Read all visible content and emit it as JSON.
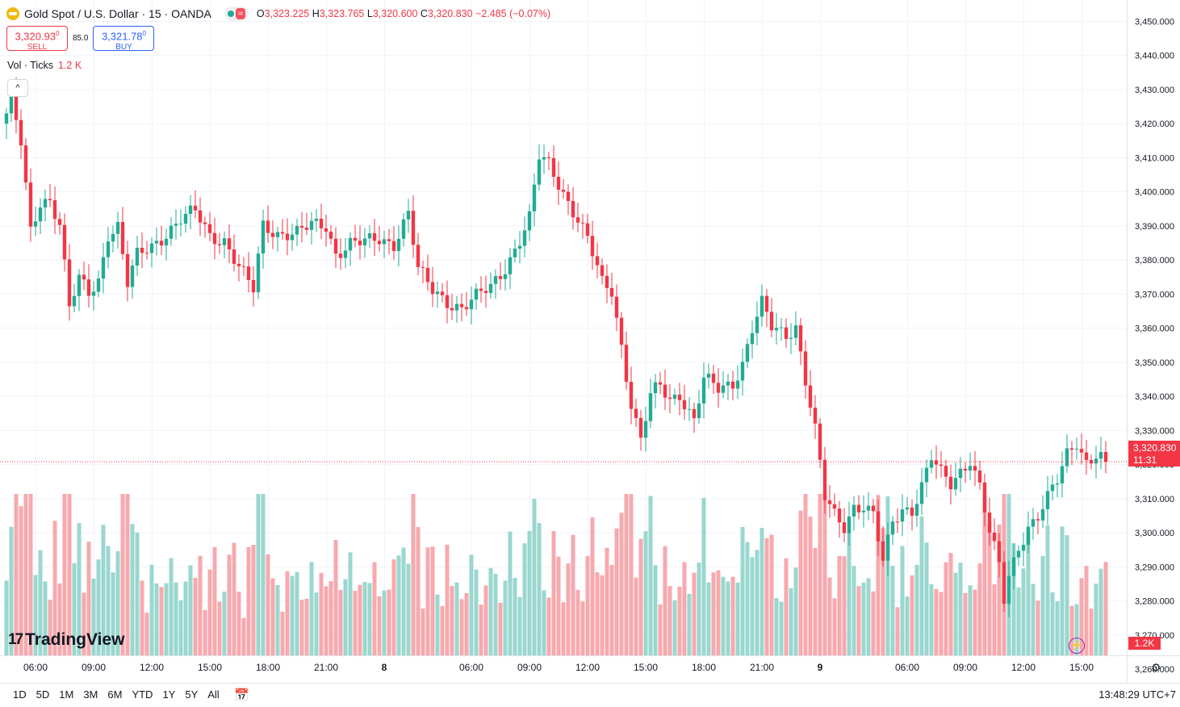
{
  "header": {
    "title": "Gold Spot / U.S. Dollar · 15 · OANDA",
    "wave_symbol": "≈",
    "ohlc": {
      "o_label": "O",
      "o": "3,323.225",
      "h_label": "H",
      "h": "3,323.765",
      "l_label": "L",
      "l": "3,320.600",
      "c_label": "C",
      "c": "3,320.830",
      "change": "−2.485 (−0.07%)"
    }
  },
  "trade": {
    "sell_price": "3,320.93",
    "sell_sup": "0",
    "sell_label": "SELL",
    "spread": "85.0",
    "buy_price": "3,321.78",
    "buy_sup": "0",
    "buy_label": "BUY"
  },
  "volume_legend": {
    "label": "Vol · Ticks",
    "value": "1.2 K"
  },
  "collapse_icon": "^",
  "branding": {
    "logo_mark": "17",
    "name": "TradingView"
  },
  "price_marker": {
    "price": "3,320.830",
    "countdown": "11:31"
  },
  "volume_marker": "1.2K",
  "bottom_bar": {
    "ranges": [
      "1D",
      "5D",
      "1M",
      "3M",
      "6M",
      "YTD",
      "1Y",
      "5Y",
      "All"
    ],
    "clock": "13:48:29 UTC+7"
  },
  "colors": {
    "up": "#22ab94",
    "down": "#f23645",
    "up_volume": "#9ad7cf",
    "down_volume": "#f7a9ae",
    "grid": "#f0f3fa"
  },
  "chart_data": {
    "type": "candlestick",
    "symbol": "Gold Spot / U.S. Dollar",
    "interval_minutes": 15,
    "y_range": [
      3265,
      3452
    ],
    "y_ticks": [
      "3,450.000",
      "3,440.000",
      "3,430.000",
      "3,420.000",
      "3,410.000",
      "3,400.000",
      "3,390.000",
      "3,380.000",
      "3,370.000",
      "3,360.000",
      "3,350.000",
      "3,340.000",
      "3,330.000",
      "3,320.000",
      "3,310.000",
      "3,300.000",
      "3,290.000",
      "3,280.000",
      "3,270.000",
      "3,260.000"
    ],
    "y_tick_values": [
      3450,
      3440,
      3430,
      3420,
      3410,
      3400,
      3390,
      3380,
      3370,
      3360,
      3350,
      3340,
      3330,
      3320,
      3310,
      3300,
      3290,
      3280,
      3270,
      3260
    ],
    "x_ticks": [
      "06:00",
      "09:00",
      "12:00",
      "15:00",
      "18:00",
      "21:00",
      "8",
      "06:00",
      "09:00",
      "12:00",
      "15:00",
      "18:00",
      "21:00",
      "9",
      "06:00",
      "09:00",
      "12:00",
      "15:00"
    ],
    "x_tick_bar_index": [
      6,
      18,
      30,
      42,
      54,
      66,
      78,
      96,
      108,
      120,
      132,
      144,
      156,
      168,
      186,
      198,
      210,
      222
    ],
    "anchor_points": [
      {
        "i": 0,
        "price": 3423
      },
      {
        "i": 1,
        "price": 3427
      },
      {
        "i": 3,
        "price": 3414
      },
      {
        "i": 5,
        "price": 3388
      },
      {
        "i": 7,
        "price": 3397
      },
      {
        "i": 9,
        "price": 3398
      },
      {
        "i": 11,
        "price": 3391
      },
      {
        "i": 13,
        "price": 3366
      },
      {
        "i": 15,
        "price": 3374
      },
      {
        "i": 17,
        "price": 3370
      },
      {
        "i": 19,
        "price": 3374
      },
      {
        "i": 21,
        "price": 3388
      },
      {
        "i": 23,
        "price": 3390
      },
      {
        "i": 25,
        "price": 3373
      },
      {
        "i": 27,
        "price": 3381
      },
      {
        "i": 30,
        "price": 3384
      },
      {
        "i": 33,
        "price": 3388
      },
      {
        "i": 36,
        "price": 3392
      },
      {
        "i": 39,
        "price": 3394
      },
      {
        "i": 42,
        "price": 3387
      },
      {
        "i": 45,
        "price": 3386
      },
      {
        "i": 48,
        "price": 3378
      },
      {
        "i": 51,
        "price": 3371
      },
      {
        "i": 53,
        "price": 3390
      },
      {
        "i": 56,
        "price": 3388
      },
      {
        "i": 60,
        "price": 3388
      },
      {
        "i": 63,
        "price": 3390
      },
      {
        "i": 66,
        "price": 3390
      },
      {
        "i": 68,
        "price": 3382
      },
      {
        "i": 71,
        "price": 3385
      },
      {
        "i": 74,
        "price": 3385
      },
      {
        "i": 77,
        "price": 3386
      },
      {
        "i": 80,
        "price": 3385
      },
      {
        "i": 83,
        "price": 3394
      },
      {
        "i": 85,
        "price": 3377
      },
      {
        "i": 88,
        "price": 3371
      },
      {
        "i": 91,
        "price": 3368
      },
      {
        "i": 94,
        "price": 3366
      },
      {
        "i": 97,
        "price": 3369
      },
      {
        "i": 100,
        "price": 3372
      },
      {
        "i": 103,
        "price": 3378
      },
      {
        "i": 106,
        "price": 3386
      },
      {
        "i": 108,
        "price": 3392
      },
      {
        "i": 110,
        "price": 3410
      },
      {
        "i": 112,
        "price": 3408
      },
      {
        "i": 115,
        "price": 3400
      },
      {
        "i": 118,
        "price": 3392
      },
      {
        "i": 120,
        "price": 3386
      },
      {
        "i": 123,
        "price": 3373
      },
      {
        "i": 125,
        "price": 3371
      },
      {
        "i": 127,
        "price": 3355
      },
      {
        "i": 129,
        "price": 3338
      },
      {
        "i": 131,
        "price": 3327
      },
      {
        "i": 133,
        "price": 3340
      },
      {
        "i": 135,
        "price": 3343
      },
      {
        "i": 137,
        "price": 3339
      },
      {
        "i": 139,
        "price": 3341
      },
      {
        "i": 142,
        "price": 3333
      },
      {
        "i": 144,
        "price": 3345
      },
      {
        "i": 147,
        "price": 3342
      },
      {
        "i": 150,
        "price": 3344
      },
      {
        "i": 152,
        "price": 3350
      },
      {
        "i": 154,
        "price": 3360
      },
      {
        "i": 156,
        "price": 3367
      },
      {
        "i": 158,
        "price": 3360
      },
      {
        "i": 161,
        "price": 3358
      },
      {
        "i": 163,
        "price": 3361
      },
      {
        "i": 165,
        "price": 3345
      },
      {
        "i": 167,
        "price": 3330
      },
      {
        "i": 169,
        "price": 3310
      },
      {
        "i": 171,
        "price": 3305
      },
      {
        "i": 173,
        "price": 3302
      },
      {
        "i": 175,
        "price": 3308
      },
      {
        "i": 177,
        "price": 3308
      },
      {
        "i": 179,
        "price": 3305
      },
      {
        "i": 181,
        "price": 3291
      },
      {
        "i": 183,
        "price": 3303
      },
      {
        "i": 185,
        "price": 3307
      },
      {
        "i": 187,
        "price": 3307
      },
      {
        "i": 189,
        "price": 3314
      },
      {
        "i": 191,
        "price": 3322
      },
      {
        "i": 193,
        "price": 3317
      },
      {
        "i": 195,
        "price": 3314
      },
      {
        "i": 197,
        "price": 3318
      },
      {
        "i": 199,
        "price": 3322
      },
      {
        "i": 201,
        "price": 3314
      },
      {
        "i": 203,
        "price": 3300
      },
      {
        "i": 205,
        "price": 3290
      },
      {
        "i": 206,
        "price": 3280
      },
      {
        "i": 207,
        "price": 3287
      },
      {
        "i": 209,
        "price": 3296
      },
      {
        "i": 211,
        "price": 3302
      },
      {
        "i": 213,
        "price": 3305
      },
      {
        "i": 215,
        "price": 3310
      },
      {
        "i": 217,
        "price": 3315
      },
      {
        "i": 219,
        "price": 3323
      },
      {
        "i": 221,
        "price": 3327
      },
      {
        "i": 223,
        "price": 3321
      },
      {
        "i": 225,
        "price": 3323
      },
      {
        "i": 227,
        "price": 3321
      }
    ],
    "bar_count": 228,
    "last": {
      "open": 3323.225,
      "high": 3323.765,
      "low": 3320.6,
      "close": 3320.83
    },
    "current_price": 3320.83,
    "volume_last": "1.2K"
  }
}
